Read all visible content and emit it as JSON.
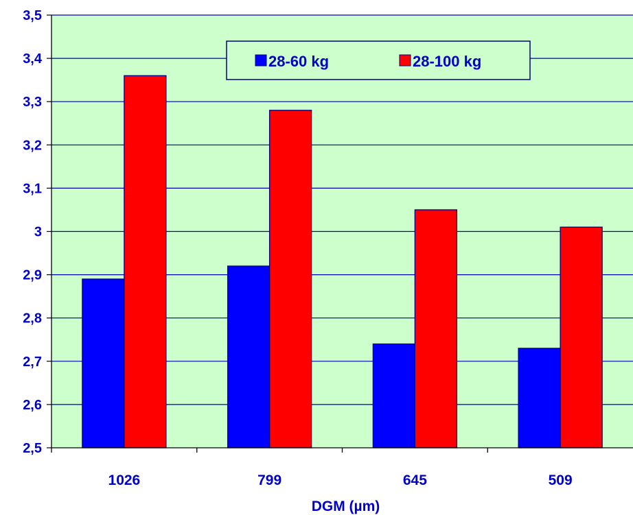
{
  "chart_data": {
    "type": "bar",
    "categories": [
      "1026",
      "799",
      "645",
      "509"
    ],
    "series": [
      {
        "name": "28-60 kg",
        "values": [
          2.89,
          2.92,
          2.74,
          2.73
        ],
        "color": "#0000ff"
      },
      {
        "name": "28-100 kg",
        "values": [
          3.36,
          3.28,
          3.05,
          3.01
        ],
        "color": "#ff0000"
      }
    ],
    "title": "",
    "xlabel": "DGM (µm)",
    "ylabel": "",
    "ylim": [
      2.5,
      3.5
    ],
    "yticks": [
      "2,5",
      "2,6",
      "2,7",
      "2,8",
      "2,9",
      "3",
      "3,1",
      "3,2",
      "3,3",
      "3,4",
      "3,5"
    ],
    "ytick_values": [
      2.5,
      2.6,
      2.7,
      2.8,
      2.9,
      3.0,
      3.1,
      3.2,
      3.3,
      3.4,
      3.5
    ],
    "grid": true,
    "legend": "top-center",
    "colors": {
      "plot_background": "#ccffcc",
      "gridline": "#0000aa",
      "text": "#0000cc",
      "bar_edge": "#000080"
    }
  }
}
